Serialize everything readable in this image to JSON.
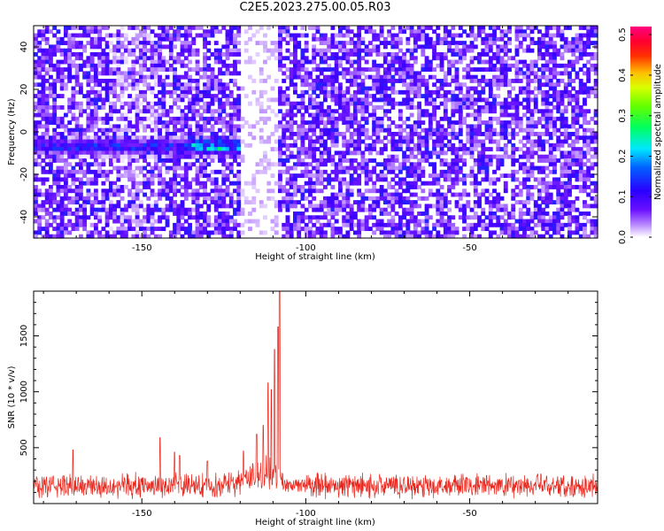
{
  "title": "C2E5.2023.275.00.05.R03",
  "chart_data": [
    {
      "type": "heatmap",
      "xlabel": "Height of straight line (km)",
      "ylabel": "Frequency (Hz)",
      "xlim": [
        -183,
        -11
      ],
      "ylim": [
        -50,
        50
      ],
      "xticks": [
        -150,
        -100,
        -50
      ],
      "yticks": [
        -40,
        -20,
        0,
        20,
        40
      ],
      "colorbar": {
        "label": "Normalized spectral amplitude",
        "range": [
          0,
          0.52
        ],
        "ticks": [
          0.0,
          0.1,
          0.2,
          0.3,
          0.4,
          0.5
        ],
        "colormap": [
          "#ffffff",
          "#8a3cff",
          "#3a00ff",
          "#0050ff",
          "#00e0ff",
          "#00ff40",
          "#c8ff00",
          "#ffb000",
          "#ff2000",
          "#ff0070"
        ]
      },
      "features": {
        "signal_band_center_hz": -7,
        "signal_x_range": [
          -183,
          -108
        ],
        "peak_x": -113,
        "peak_value": 0.45,
        "blank_region_x": [
          -120,
          -109
        ]
      }
    },
    {
      "type": "line",
      "xlabel": "Height of straight line (km)",
      "ylabel": "SNR (10 * v/v)",
      "xlim": [
        -183,
        -11
      ],
      "ylim": [
        0,
        1900
      ],
      "xticks": [
        -150,
        -100,
        -50
      ],
      "yticks": [
        500,
        1000,
        1500
      ],
      "color": "#e8281e",
      "baseline": 160,
      "noise_amplitude": 130,
      "spikes": [
        {
          "x": -171,
          "y": 480
        },
        {
          "x": -144.5,
          "y": 590
        },
        {
          "x": -140,
          "y": 460
        },
        {
          "x": -138.5,
          "y": 430
        },
        {
          "x": -130,
          "y": 380
        },
        {
          "x": -119,
          "y": 470
        },
        {
          "x": -115,
          "y": 620
        },
        {
          "x": -113,
          "y": 700
        },
        {
          "x": -111.5,
          "y": 1080
        },
        {
          "x": -110.5,
          "y": 1020
        },
        {
          "x": -109.5,
          "y": 1380
        },
        {
          "x": -108.5,
          "y": 1580
        },
        {
          "x": -108,
          "y": 1900
        }
      ]
    }
  ]
}
